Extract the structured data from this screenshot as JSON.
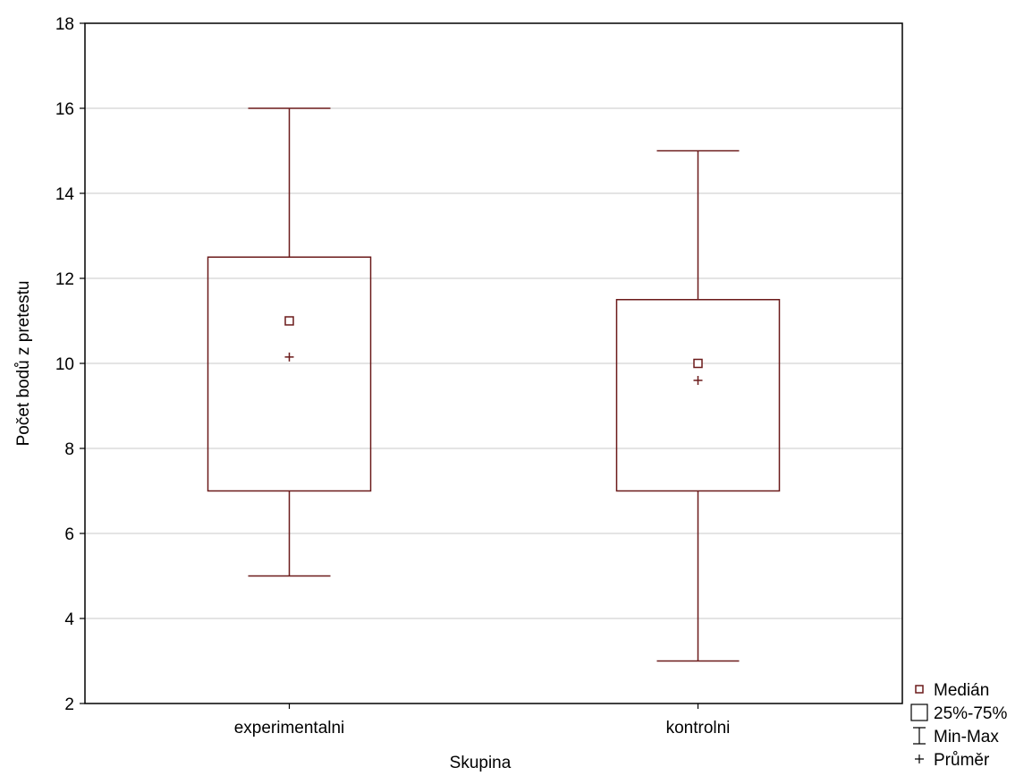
{
  "chart_data": {
    "type": "box",
    "xlabel": "Skupina",
    "ylabel": "Počet bodů z pretestu",
    "ylim": [
      2,
      18
    ],
    "yticks": [
      2,
      4,
      6,
      8,
      10,
      12,
      14,
      16,
      18
    ],
    "yticks_labels": [
      "2",
      "4",
      "6",
      "8",
      "10",
      "12",
      "14",
      "16",
      "18"
    ],
    "grid": "horizontal",
    "legend_position": "bottom-right, outside plot",
    "colors": {
      "box": "#6b1a1a",
      "grid": "#c8c8c8",
      "frame": "#000000"
    },
    "categories": [
      "experimentalni",
      "kontrolni"
    ],
    "boxes": [
      {
        "category": "experimentalni",
        "min": 5,
        "q1": 7,
        "median": 11,
        "q3": 12.5,
        "max": 16,
        "mean": 10.15
      },
      {
        "category": "kontrolni",
        "min": 3,
        "q1": 7,
        "median": 10,
        "q3": 11.5,
        "max": 15,
        "mean": 9.6
      }
    ],
    "legend": [
      {
        "symbol": "median",
        "label": "Medián"
      },
      {
        "symbol": "box",
        "label": "25%-75%"
      },
      {
        "symbol": "whisker",
        "label": "Min-Max"
      },
      {
        "symbol": "mean",
        "label": "Průměr"
      }
    ]
  }
}
